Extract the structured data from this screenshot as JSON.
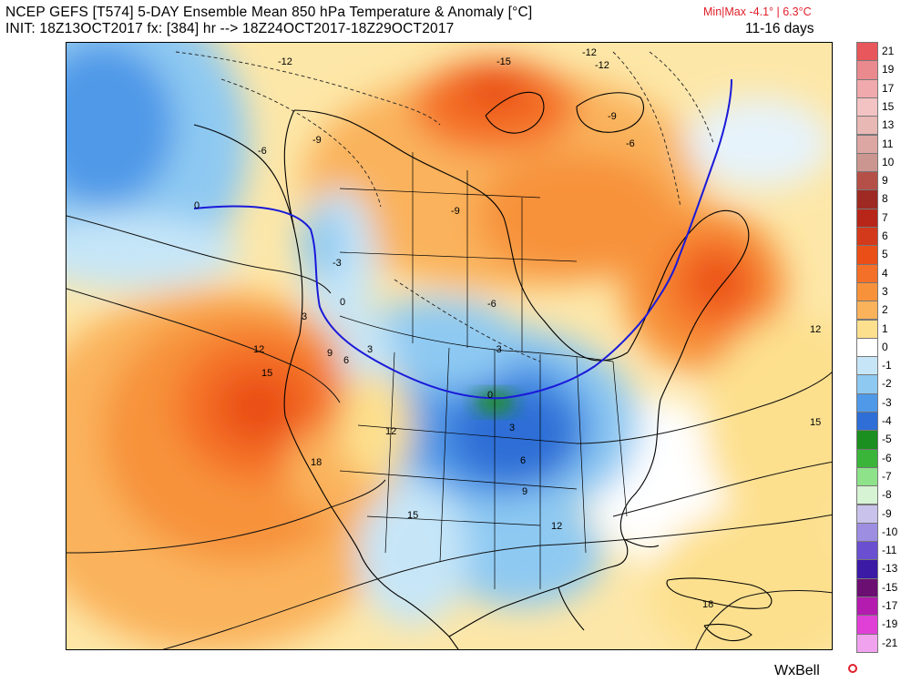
{
  "header": {
    "title": "NCEP GEFS [T574] 5-DAY Ensemble Mean 850 hPa Temperature & Anomaly [°C]",
    "minmax": "Min|Max -4.1° | 6.3°C",
    "subtitle": "INIT: 18Z13OCT2017 fx: [384] hr --> 18Z24OCT2017-18Z29OCT2017",
    "period": "11-16 days"
  },
  "brand": {
    "text": "WxBell"
  },
  "map": {
    "contour_labels": [
      "-12",
      "-9",
      "-6",
      "-3",
      "0",
      "0",
      "0",
      "3",
      "3",
      "6",
      "9",
      "12",
      "15",
      "12",
      "15",
      "18",
      "12",
      "9",
      "6",
      "3",
      "12",
      "15",
      "18",
      "-15",
      "-12",
      "-9",
      "-6",
      "-6",
      "-9",
      "-12",
      "-3"
    ]
  },
  "colorbar": {
    "labels": [
      "21",
      "19",
      "17",
      "15",
      "13",
      "11",
      "10",
      "9",
      "8",
      "7",
      "6",
      "5",
      "4",
      "3",
      "2",
      "1",
      "0",
      "-1",
      "-2",
      "-3",
      "-4",
      "-5",
      "-6",
      "-7",
      "-8",
      "-9",
      "-10",
      "-11",
      "-13",
      "-15",
      "-17",
      "-19",
      "-21"
    ],
    "colors": [
      "#e8575c",
      "#ea8a8e",
      "#f0a9ac",
      "#f3c3c4",
      "#e8b8b5",
      "#dca7a3",
      "#cc9690",
      "#b55048",
      "#9e2a23",
      "#b8261a",
      "#d33a1c",
      "#ea4f17",
      "#f46f27",
      "#f7923a",
      "#fab25b",
      "#fde08e",
      "#ffffff",
      "#c6e6f8",
      "#8ec9f2",
      "#4f99e8",
      "#2f6ed6",
      "#1b8f1f",
      "#3ab53a",
      "#8ee28a",
      "#d6f3d3",
      "#c9c3ec",
      "#9d8ee2",
      "#6a4fd1",
      "#3b1aa6",
      "#6b0f73",
      "#b31cae",
      "#e040d6",
      "#f1a2ee"
    ]
  }
}
